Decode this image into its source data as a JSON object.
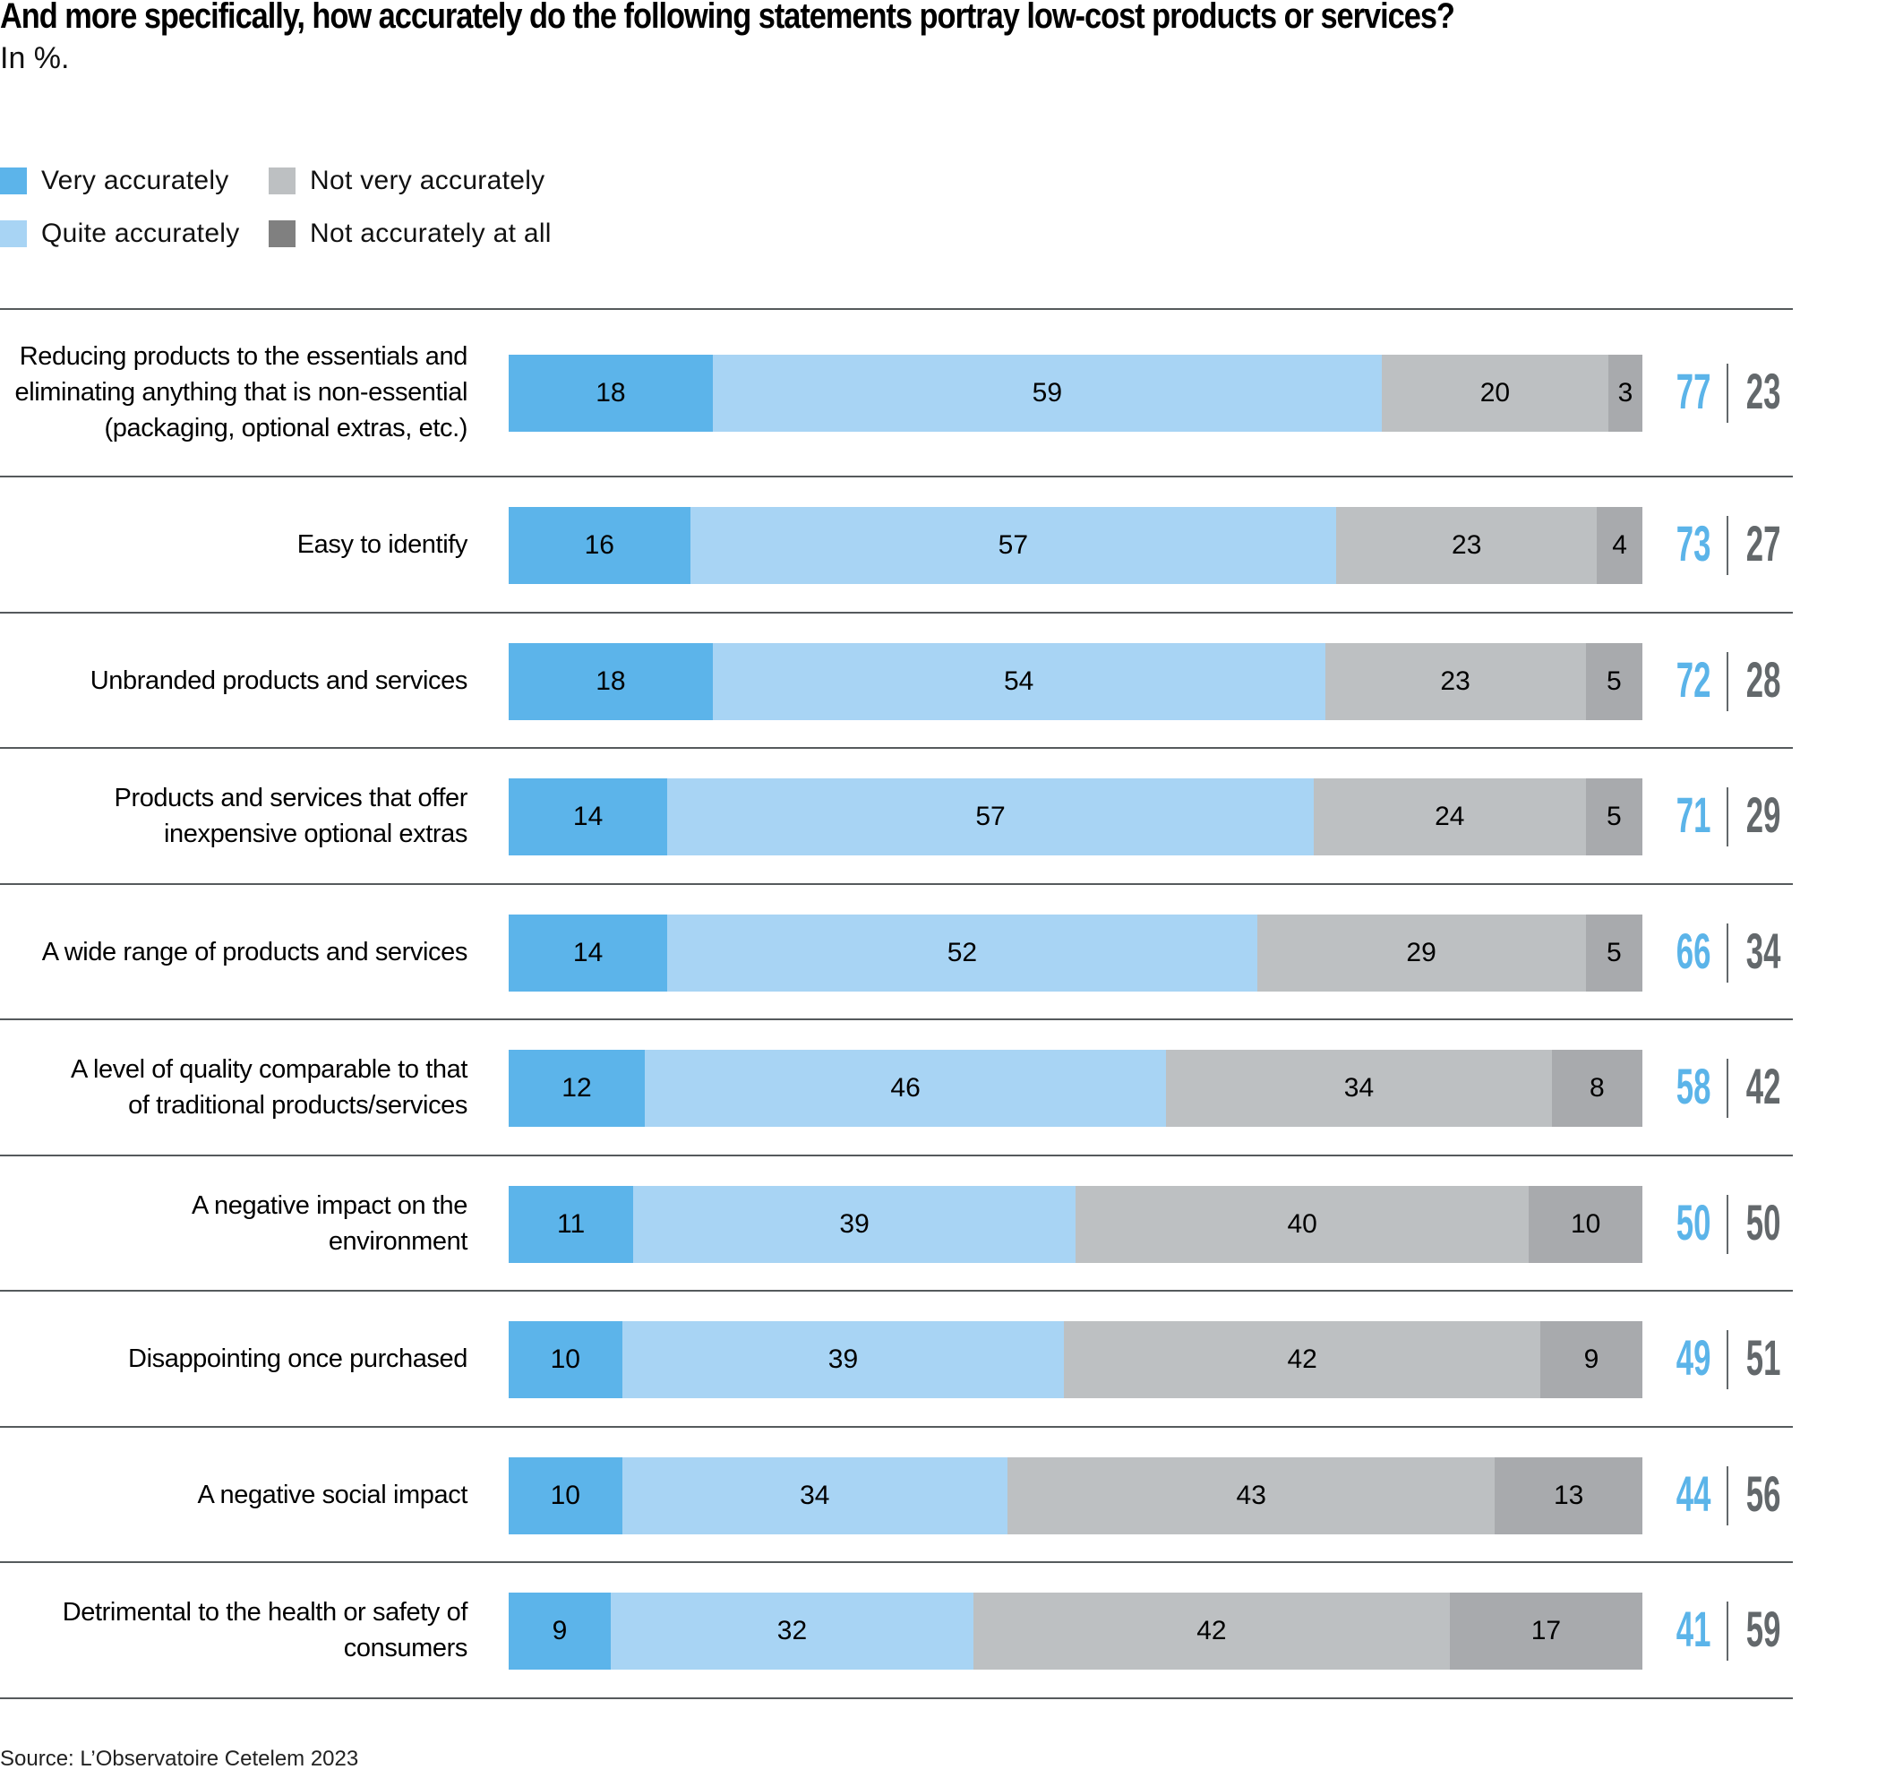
{
  "title": "And more specifically, how accurately do the following statements portray low-cost products or services?",
  "subtitle": "In %.",
  "source": "Source: L’Observatoire Cetelem 2023",
  "legend": [
    {
      "label": "Very accurately",
      "color": "#5cb4ea"
    },
    {
      "label": "Quite accurately",
      "color": "#a8d4f4"
    },
    {
      "label": "Not very accurately",
      "color": "#bdc0c2"
    },
    {
      "label": "Not accurately at all",
      "color": "#808080"
    }
  ],
  "segment_colors": [
    "#5cb4ea",
    "#a8d4f4",
    "#bdc0c2",
    "#a8aaad"
  ],
  "total_colors": {
    "positive": "#5bb4e9",
    "negative": "#63686b"
  },
  "chart_data": {
    "type": "bar",
    "orientation": "horizontal",
    "stacked": true,
    "title": "And more specifically, how accurately do the following statements portray low-cost products or services?",
    "subtitle": "In %.",
    "xlabel": "",
    "ylabel": "",
    "xlim": [
      0,
      100
    ],
    "grid": false,
    "legend_position": "top-left",
    "categories": [
      [
        "Reducing products to the essentials and",
        "eliminating anything that is non-essential",
        "(packaging, optional extras, etc.)"
      ],
      [
        "Easy to identify"
      ],
      [
        "Unbranded products and services"
      ],
      [
        "Products and services that offer",
        "inexpensive optional extras"
      ],
      [
        "A wide range of products and services"
      ],
      [
        "A level of quality comparable to that",
        "of traditional products/services"
      ],
      [
        "A negative impact on the",
        "environment"
      ],
      [
        "Disappointing once purchased"
      ],
      [
        "A negative social impact"
      ],
      [
        "Detrimental to the health or safety of",
        "consumers"
      ]
    ],
    "series": [
      {
        "name": "Very accurately",
        "values": [
          18,
          16,
          18,
          14,
          14,
          12,
          11,
          10,
          10,
          9
        ]
      },
      {
        "name": "Quite accurately",
        "values": [
          59,
          57,
          54,
          57,
          52,
          46,
          39,
          39,
          34,
          32
        ]
      },
      {
        "name": "Not very accurately",
        "values": [
          20,
          23,
          23,
          24,
          29,
          34,
          40,
          42,
          43,
          42
        ]
      },
      {
        "name": "Not accurately at all",
        "values": [
          3,
          4,
          5,
          5,
          5,
          8,
          10,
          9,
          13,
          17
        ]
      }
    ],
    "totals": {
      "accurate": [
        77,
        73,
        72,
        71,
        66,
        58,
        50,
        49,
        44,
        41
      ],
      "not_accurate": [
        23,
        27,
        28,
        29,
        34,
        42,
        50,
        51,
        56,
        59
      ]
    }
  }
}
